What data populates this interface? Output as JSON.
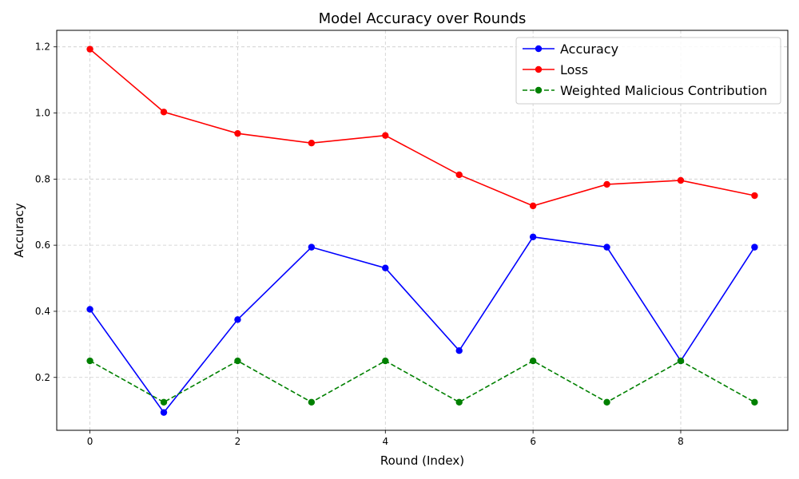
{
  "chart_data": {
    "type": "line",
    "title": "Model Accuracy over Rounds",
    "xlabel": "Round (Index)",
    "ylabel": "Accuracy",
    "x": [
      0,
      1,
      2,
      3,
      4,
      5,
      6,
      7,
      8,
      9
    ],
    "xlim": [
      -0.45,
      9.45
    ],
    "ylim": [
      0.04,
      1.25
    ],
    "xticks": [
      0,
      2,
      4,
      6,
      8
    ],
    "yticks": [
      0.2,
      0.4,
      0.6,
      0.8,
      1.0,
      1.2
    ],
    "ytick_labels": [
      "0.2",
      "0.4",
      "0.6",
      "0.8",
      "1.0",
      "1.2"
    ],
    "grid": true,
    "legend_position": "top-right",
    "series": [
      {
        "name": "Accuracy",
        "color": "#0000ff",
        "dashed": false,
        "values": [
          0.406,
          0.094,
          0.375,
          0.594,
          0.531,
          0.281,
          0.625,
          0.594,
          0.25,
          0.594
        ]
      },
      {
        "name": "Loss",
        "color": "#ff0000",
        "dashed": false,
        "values": [
          1.193,
          1.003,
          0.938,
          0.909,
          0.932,
          0.813,
          0.719,
          0.784,
          0.796,
          0.75
        ]
      },
      {
        "name": "Weighted Malicious Contribution",
        "color": "#008000",
        "dashed": true,
        "values": [
          0.25,
          0.125,
          0.25,
          0.125,
          0.25,
          0.125,
          0.25,
          0.125,
          0.25,
          0.125
        ]
      }
    ]
  }
}
